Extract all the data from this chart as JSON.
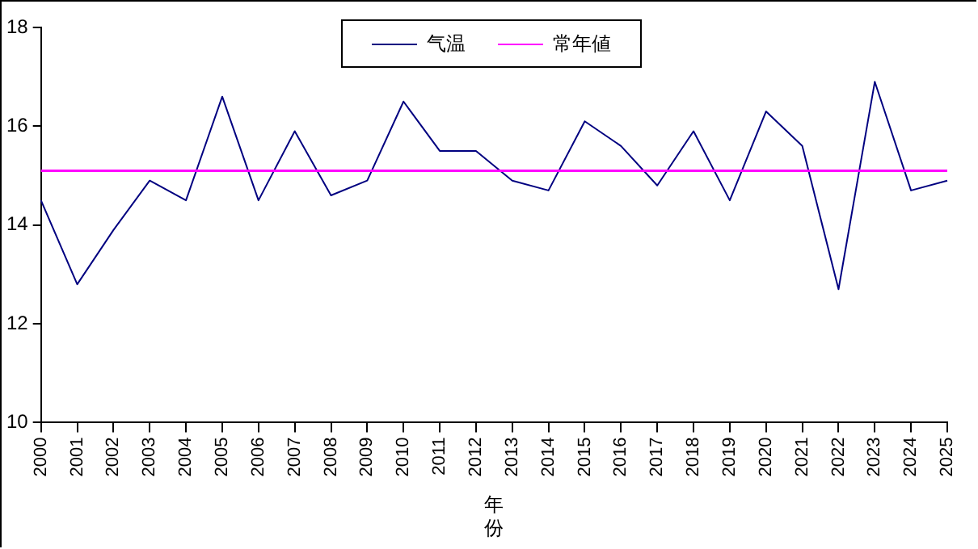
{
  "chart_data": {
    "type": "line",
    "xlabel": "年份",
    "categories": [
      "2000",
      "2001",
      "2002",
      "2003",
      "2004",
      "2005",
      "2006",
      "2007",
      "2008",
      "2009",
      "2010",
      "2011",
      "2012",
      "2013",
      "2014",
      "2015",
      "2016",
      "2017",
      "2018",
      "2019",
      "2020",
      "2021",
      "2022",
      "2023",
      "2024",
      "2025"
    ],
    "series": [
      {
        "name": "气温",
        "color": "#000080",
        "values": [
          14.5,
          12.8,
          13.9,
          14.9,
          14.5,
          16.6,
          14.5,
          15.9,
          14.6,
          14.9,
          16.5,
          15.5,
          15.5,
          14.9,
          14.7,
          16.1,
          15.6,
          14.8,
          15.9,
          14.5,
          16.3,
          15.6,
          12.7,
          16.9,
          14.7,
          14.9
        ]
      }
    ],
    "ref_lines": [
      {
        "axis": "y",
        "value": 15.1,
        "label": "常年値",
        "color": "#ff00ff"
      }
    ],
    "ylim": [
      10,
      18
    ],
    "yticks": [
      10,
      12,
      14,
      16,
      18
    ],
    "grid": false,
    "legend": "top",
    "marker": "none",
    "line_style": "solid"
  }
}
